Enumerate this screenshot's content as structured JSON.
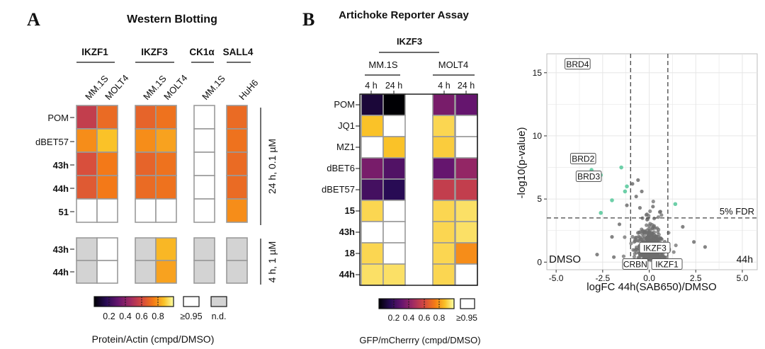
{
  "panel_a": {
    "letter": "A",
    "title": "Western Blotting",
    "groups": [
      {
        "label": "IKZF1"
      },
      {
        "label": "IKZF3"
      },
      {
        "label": "CK1α"
      },
      {
        "label": "SALL4"
      }
    ],
    "columns": [
      "MM.1S",
      "MOLT4",
      "MM.1S",
      "MOLT4",
      "MM.1S",
      "HuH6"
    ],
    "rows_top": [
      {
        "label": "POM",
        "bold": false
      },
      {
        "label": "dBET57",
        "bold": false
      },
      {
        "label": "43h",
        "bold": true
      },
      {
        "label": "44h",
        "bold": true
      },
      {
        "label": "51",
        "bold": true
      }
    ],
    "rows_bottom": [
      {
        "label": "43h",
        "bold": true
      },
      {
        "label": "44h",
        "bold": true
      }
    ],
    "condition_top": "24 h, 0.1 µM",
    "condition_bottom": "4 h, 1 µM",
    "values_top": [
      [
        0.55,
        0.7,
        0.68,
        0.72,
        1.0,
        0.7
      ],
      [
        0.78,
        0.88,
        0.78,
        0.82,
        1.0,
        0.72
      ],
      [
        0.62,
        0.74,
        0.68,
        0.72,
        1.0,
        0.7
      ],
      [
        0.65,
        0.74,
        0.7,
        0.72,
        1.0,
        0.7
      ],
      [
        0.95,
        1.0,
        1.0,
        1.0,
        1.0,
        0.78
      ]
    ],
    "values_bottom": [
      [
        "nd",
        0.95,
        "nd",
        0.86,
        "nd",
        "nd"
      ],
      [
        "nd",
        1.0,
        "nd",
        0.82,
        "nd",
        "nd"
      ]
    ],
    "legend_ticks": [
      "0.2",
      "0.4",
      "0.6",
      "0.8"
    ],
    "legend_high": "≥0.95",
    "legend_nd": "n.d.",
    "legend_caption": "Protein/Actin (cmpd/DMSO)"
  },
  "panel_b": {
    "letter": "B",
    "title": "Artichoke Reporter Assay",
    "group_label": "IKZF3",
    "cell_lines": [
      "MM.1S",
      "MOLT4"
    ],
    "times": [
      "4 h",
      "24 h",
      "4 h",
      "24 h"
    ],
    "rows": [
      {
        "label": "POM",
        "bold": false
      },
      {
        "label": "JQ1",
        "bold": false
      },
      {
        "label": "MZ1",
        "bold": false
      },
      {
        "label": "dBET6",
        "bold": false
      },
      {
        "label": "dBET57",
        "bold": false
      },
      {
        "label": "15",
        "bold": true
      },
      {
        "label": "43h",
        "bold": true
      },
      {
        "label": "18",
        "bold": true
      },
      {
        "label": "44h",
        "bold": true
      }
    ],
    "values": [
      [
        0.1,
        0.0,
        0.35,
        0.3
      ],
      [
        0.88,
        1.0,
        0.92,
        1.0
      ],
      [
        1.0,
        0.88,
        0.9,
        1.0
      ],
      [
        0.35,
        0.25,
        0.3,
        0.42
      ],
      [
        0.22,
        0.15,
        0.55,
        0.55
      ],
      [
        0.92,
        1.0,
        0.92,
        0.94
      ],
      [
        1.0,
        1.0,
        0.92,
        0.94
      ],
      [
        0.92,
        1.0,
        0.92,
        0.78
      ],
      [
        0.94,
        0.94,
        0.92,
        1.0
      ]
    ],
    "legend_ticks": [
      "0.2",
      "0.4",
      "0.6",
      "0.8"
    ],
    "legend_high": "≥0.95",
    "legend_caption": "GFP/mCherrry (cmpd/DMSO)"
  },
  "colors": {
    "grid_border": "#9a9a9a",
    "nd_fill": "#d3d3d3",
    "sig_point": "#6dcfa8",
    "nonsig_point": "#6e6e6e",
    "panel_bg": "#ffffff",
    "gridline": "#e6e6e6"
  },
  "chart_data": {
    "type": "scatter",
    "title": "",
    "xlabel": "logFC 44h(SAB650)/DMSO",
    "ylabel": "-log10(p-value)",
    "xlim": [
      -5.5,
      5.8
    ],
    "ylim": [
      -0.6,
      16.5
    ],
    "xticks": [
      "-5.0",
      "-2.5",
      "0.0",
      "2.5",
      "5.0"
    ],
    "yticks": [
      "0",
      "5",
      "10",
      "15"
    ],
    "vlines": [
      -1.0,
      1.0
    ],
    "hline": 3.5,
    "hline_label": "5% FDR",
    "corner_left": "DMSO",
    "corner_right": "44h",
    "significant_points": [
      {
        "x": -4.3,
        "y": 15.7
      },
      {
        "x": -3.2,
        "y": 8.5
      },
      {
        "x": -3.1,
        "y": 7.3
      },
      {
        "x": -2.6,
        "y": 6.9
      },
      {
        "x": -1.5,
        "y": 7.5
      },
      {
        "x": -1.2,
        "y": 6.0
      },
      {
        "x": -2.0,
        "y": 4.9
      },
      {
        "x": -2.6,
        "y": 3.9
      },
      {
        "x": -1.3,
        "y": 5.6
      },
      {
        "x": 1.4,
        "y": 4.6
      }
    ],
    "labels": [
      {
        "text": "BRD4",
        "x": -3.85,
        "y": 15.7
      },
      {
        "text": "BRD2",
        "x": -3.55,
        "y": 8.2
      },
      {
        "text": "BRD3",
        "x": -3.25,
        "y": 6.8
      },
      {
        "text": "IKZF3",
        "x": 0.3,
        "y": 1.15
      },
      {
        "text": "CRBN",
        "x": -0.75,
        "y": -0.15
      },
      {
        "text": "IKZF1",
        "x": 0.95,
        "y": -0.15
      }
    ]
  }
}
